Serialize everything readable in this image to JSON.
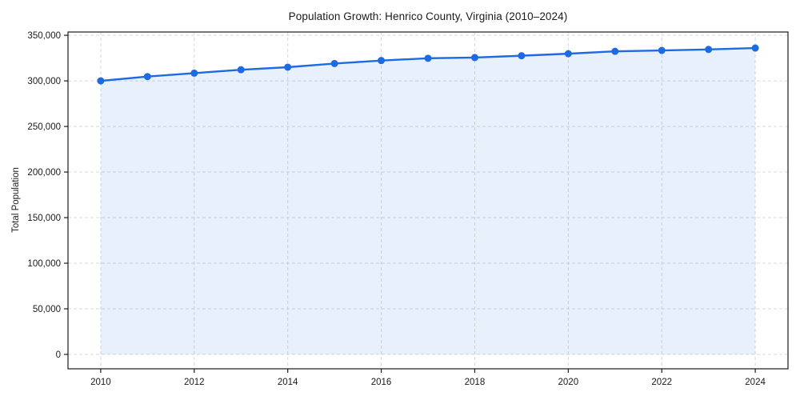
{
  "chart_data": {
    "type": "line",
    "title": "Population Growth: Henrico County, Virginia (2010–2024)",
    "xlabel": "",
    "ylabel": "Total Population",
    "x": [
      2010,
      2011,
      2012,
      2013,
      2014,
      2015,
      2016,
      2017,
      2018,
      2019,
      2020,
      2021,
      2022,
      2023,
      2024
    ],
    "series": [
      {
        "name": "Total Population",
        "values": [
          300000,
          304700,
          308500,
          312200,
          315000,
          319000,
          322300,
          324800,
          325600,
          327600,
          329800,
          332400,
          333400,
          334500,
          336000
        ]
      }
    ],
    "x_ticks": [
      2010,
      2012,
      2014,
      2016,
      2018,
      2020,
      2022,
      2024
    ],
    "x_tick_labels": [
      "2010",
      "2012",
      "2014",
      "2016",
      "2018",
      "2020",
      "2022",
      "2024"
    ],
    "y_ticks": [
      0,
      50000,
      100000,
      150000,
      200000,
      250000,
      300000,
      350000
    ],
    "y_tick_labels": [
      "0",
      "50,000",
      "100,000",
      "150,000",
      "200,000",
      "250,000",
      "300,000",
      "350,000"
    ],
    "xlim": [
      2009.3,
      2024.7
    ],
    "ylim": [
      -15800,
      353600
    ],
    "grid": true,
    "grid_style": "dashed",
    "legend_position": "none",
    "area_fill": true,
    "marker": "circle",
    "colors": {
      "line": "#1e6ae1",
      "marker": "#1e6ae1",
      "area_fill": "#1e6ae1",
      "area_fill_opacity": 0.1,
      "grid": "#d9d9d9",
      "axis": "#1a1a1a",
      "text": "#1a1a1a",
      "background": "#ffffff"
    }
  }
}
